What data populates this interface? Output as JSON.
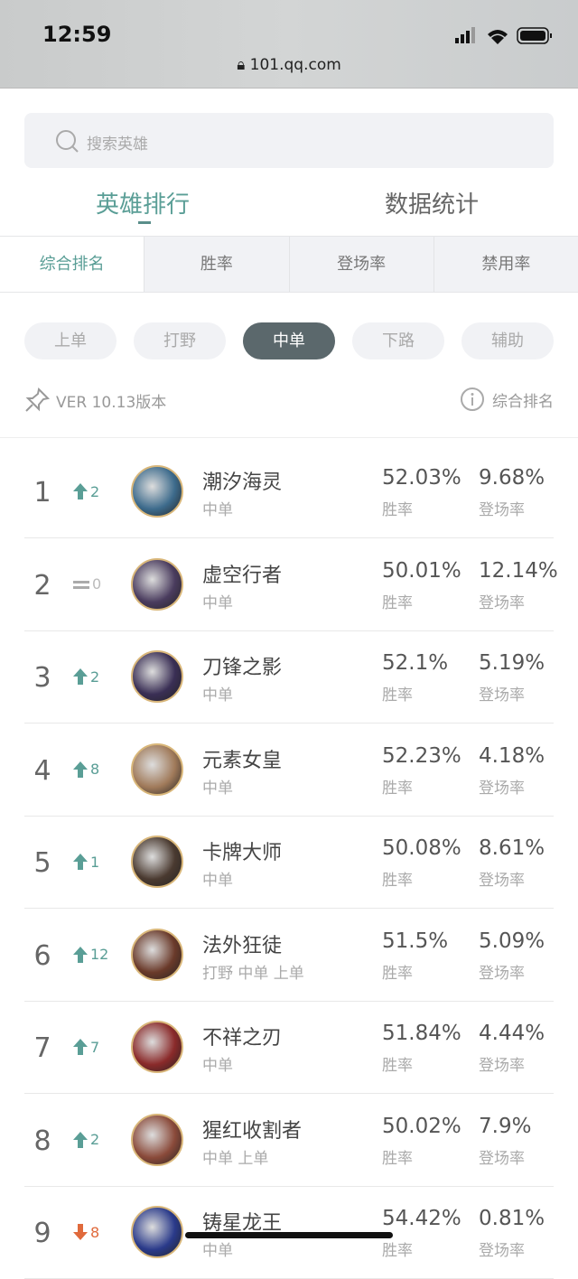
{
  "status": {
    "time": "12:59",
    "url": "101.qq.com"
  },
  "search": {
    "placeholder": "搜索英雄"
  },
  "main_tabs": [
    {
      "label": "英雄排行",
      "active": true
    },
    {
      "label": "数据统计",
      "active": false
    }
  ],
  "sub_tabs": [
    {
      "label": "综合排名",
      "active": true
    },
    {
      "label": "胜率"
    },
    {
      "label": "登场率"
    },
    {
      "label": "禁用率"
    }
  ],
  "lanes": [
    {
      "label": "上单"
    },
    {
      "label": "打野"
    },
    {
      "label": "中单",
      "active": true
    },
    {
      "label": "下路"
    },
    {
      "label": "辅助"
    }
  ],
  "version": "VER 10.13版本",
  "sort_label": "综合排名",
  "colors": {
    "accent": "#5a9e96",
    "up": "#5a9e96",
    "down": "#e06a3c",
    "active_pill": "#5b686c"
  },
  "heroes": [
    {
      "rank": "1",
      "trend": "up",
      "change": "2",
      "name": "潮汐海灵",
      "pos": "中单",
      "win": "52.03%",
      "win_label": "胜率",
      "pick": "9.68%",
      "pick_label": "登场率",
      "c": "#3d6b8c"
    },
    {
      "rank": "2",
      "trend": "same",
      "change": "0",
      "name": "虚空行者",
      "pos": "中单",
      "win": "50.01%",
      "win_label": "胜率",
      "pick": "12.14%",
      "pick_label": "登场率",
      "c": "#4a3c5e"
    },
    {
      "rank": "3",
      "trend": "up",
      "change": "2",
      "name": "刀锋之影",
      "pos": "中单",
      "win": "52.1%",
      "win_label": "胜率",
      "pick": "5.19%",
      "pick_label": "登场率",
      "c": "#3a2f55"
    },
    {
      "rank": "4",
      "trend": "up",
      "change": "8",
      "name": "元素女皇",
      "pos": "中单",
      "win": "52.23%",
      "win_label": "胜率",
      "pick": "4.18%",
      "pick_label": "登场率",
      "c": "#a07a5a"
    },
    {
      "rank": "5",
      "trend": "up",
      "change": "1",
      "name": "卡牌大师",
      "pos": "中单",
      "win": "50.08%",
      "win_label": "胜率",
      "pick": "8.61%",
      "pick_label": "登场率",
      "c": "#4a3a30"
    },
    {
      "rank": "6",
      "trend": "up",
      "change": "12",
      "name": "法外狂徒",
      "pos": "打野 中单 上单",
      "win": "51.5%",
      "win_label": "胜率",
      "pick": "5.09%",
      "pick_label": "登场率",
      "c": "#6a3a2a"
    },
    {
      "rank": "7",
      "trend": "up",
      "change": "7",
      "name": "不祥之刃",
      "pos": "中单",
      "win": "51.84%",
      "win_label": "胜率",
      "pick": "4.44%",
      "pick_label": "登场率",
      "c": "#8a2a2a"
    },
    {
      "rank": "8",
      "trend": "up",
      "change": "2",
      "name": "猩红收割者",
      "pos": "中单 上单",
      "win": "50.02%",
      "win_label": "胜率",
      "pick": "7.9%",
      "pick_label": "登场率",
      "c": "#8a4a3a"
    },
    {
      "rank": "9",
      "trend": "down",
      "change": "8",
      "name": "铸星龙王",
      "pos": "中单",
      "win": "54.42%",
      "win_label": "胜率",
      "pick": "0.81%",
      "pick_label": "登场率",
      "c": "#2a3a8a"
    }
  ]
}
